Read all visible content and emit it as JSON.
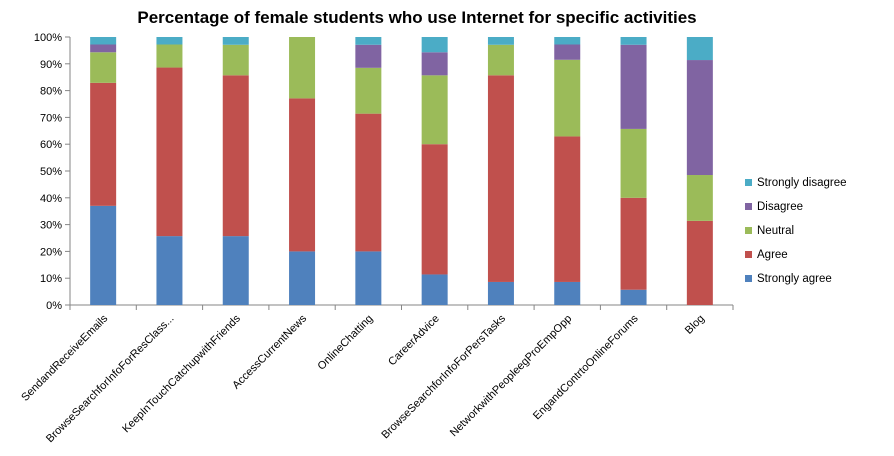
{
  "chart_data": {
    "type": "bar",
    "stacked": true,
    "title": "Percentage of female students who use Internet for specific activities",
    "xlabel": "",
    "ylabel": "",
    "ylim": [
      0,
      100
    ],
    "y_ticks": [
      "0%",
      "10%",
      "20%",
      "30%",
      "40%",
      "50%",
      "60%",
      "70%",
      "80%",
      "90%",
      "100%"
    ],
    "grid": false,
    "legend_position": "right",
    "categories": [
      "SendandReceiveEmails",
      "BrowseSearchforInfoForResClass...",
      "KeepInTouchCatchupwithFriends",
      "AccessCurrentNews",
      "OnlineChatting",
      "CareerAdvice",
      "BrowseSearchforInfoForPersTasks",
      "NetworkwithPeopleegProEmpOpp",
      "EngandContrtoOnlineForums",
      "Blog"
    ],
    "series": [
      {
        "name": "Strongly agree",
        "color": "#4f81bd",
        "values": [
          37,
          25.7,
          25.7,
          20,
          20,
          11.4,
          8.6,
          8.6,
          5.7,
          0
        ]
      },
      {
        "name": "Agree",
        "color": "#c0504d",
        "values": [
          45.9,
          62.9,
          60,
          57.1,
          51.4,
          48.6,
          77.1,
          54.3,
          34.3,
          31.4
        ]
      },
      {
        "name": "Neutral",
        "color": "#9bbb59",
        "values": [
          11.4,
          8.6,
          11.4,
          22.9,
          17.1,
          25.7,
          11.4,
          28.6,
          25.7,
          17.1
        ]
      },
      {
        "name": "Disagree",
        "color": "#8064a2",
        "values": [
          2.9,
          0,
          0,
          0,
          8.6,
          8.6,
          0,
          5.7,
          31.4,
          42.9
        ]
      },
      {
        "name": "Strongly disagree",
        "color": "#4bacc6",
        "values": [
          2.8,
          2.8,
          2.9,
          0,
          2.9,
          5.7,
          2.9,
          2.8,
          2.9,
          8.6
        ]
      }
    ],
    "legend_order": [
      "Strongly disagree",
      "Disagree",
      "Neutral",
      "Agree",
      "Strongly agree"
    ]
  }
}
